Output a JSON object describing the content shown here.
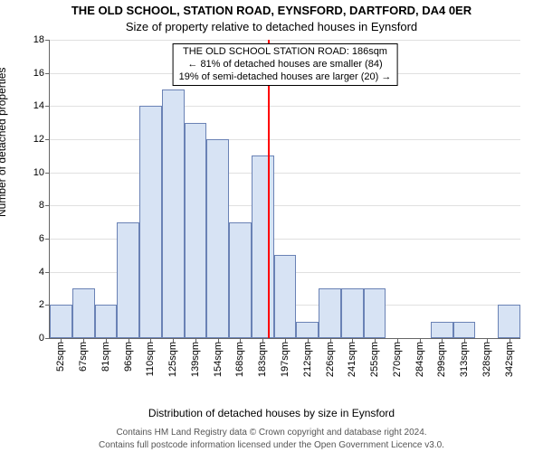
{
  "title_line1": "THE OLD SCHOOL, STATION ROAD, EYNSFORD, DARTFORD, DA4 0ER",
  "title_line2": "Size of property relative to detached houses in Eynsford",
  "ylabel": "Number of detached properties",
  "xlabel": "Distribution of detached houses by size in Eynsford",
  "footer_line1": "Contains HM Land Registry data © Crown copyright and database right 2024.",
  "footer_line2": "Contains full postcode information licensed under the Open Government Licence v3.0.",
  "chart": {
    "type": "histogram",
    "x_categories": [
      "52sqm",
      "67sqm",
      "81sqm",
      "96sqm",
      "110sqm",
      "125sqm",
      "139sqm",
      "154sqm",
      "168sqm",
      "183sqm",
      "197sqm",
      "212sqm",
      "226sqm",
      "241sqm",
      "255sqm",
      "270sqm",
      "284sqm",
      "299sqm",
      "313sqm",
      "328sqm",
      "342sqm"
    ],
    "values": [
      2,
      3,
      2,
      7,
      14,
      15,
      13,
      12,
      7,
      11,
      5,
      1,
      3,
      3,
      3,
      0,
      0,
      1,
      1,
      0,
      2
    ],
    "bar_fill": "#d7e3f4",
    "bar_border": "#6a82b5",
    "bar_width_ratio": 1.0,
    "ylim": [
      0,
      18
    ],
    "ytick_step": 2,
    "grid_color": "#e0e0e0",
    "axis_color": "#666666",
    "background_color": "#ffffff",
    "tick_fontsize": 11,
    "label_fontsize": 12,
    "title_fontsize": 13,
    "reference_line": {
      "x_value": 186,
      "x_min": 52,
      "x_max": 342,
      "color": "#ff0000",
      "width": 2
    },
    "annotation": {
      "line1": "THE OLD SCHOOL STATION ROAD: 186sqm",
      "line2": "← 81% of detached houses are smaller (84)",
      "line3": "19% of semi-detached houses are larger (20) →",
      "border_color": "#000000",
      "bg_color": "#ffffff",
      "fontsize": 11
    }
  }
}
